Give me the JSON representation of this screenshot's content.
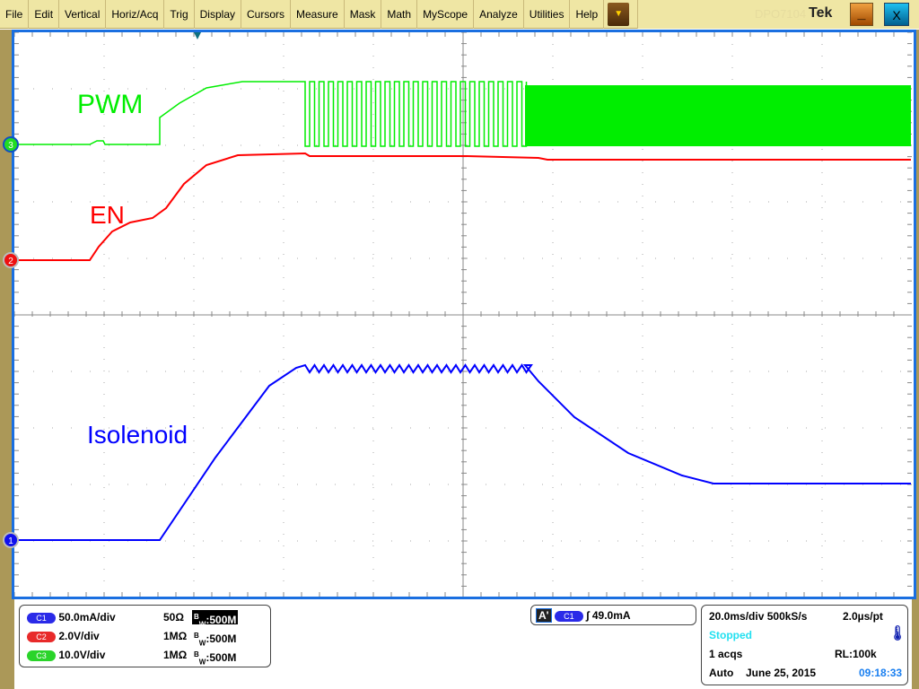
{
  "menu": {
    "items": [
      "File",
      "Edit",
      "Vertical",
      "Horiz/Acq",
      "Trig",
      "Display",
      "Cursors",
      "Measure",
      "Mask",
      "Math",
      "MyScope",
      "Analyze",
      "Utilities",
      "Help"
    ],
    "model": "DPO7104",
    "brand": "Tek",
    "minimize": "_",
    "close": "X"
  },
  "waveforms": {
    "labels": {
      "pwm": "PWM",
      "en": "EN",
      "isolenoid": "Isolenoid"
    },
    "markers": {
      "c1": "1",
      "c2": "2",
      "c3": "3"
    },
    "colors": {
      "c1": "#0000ff",
      "c2": "#ff0000",
      "c3": "#00ee00",
      "graticule_border": "#1a6fe0"
    }
  },
  "channels": [
    {
      "id": "C1",
      "scale": "50.0mA/div",
      "impedance": "50Ω",
      "bw": "500M",
      "color": "#2a2ae8"
    },
    {
      "id": "C2",
      "scale": "2.0V/div",
      "impedance": "1MΩ",
      "bw": "500M",
      "color": "#e82a2a"
    },
    {
      "id": "C3",
      "scale": "10.0V/div",
      "impedance": "1MΩ",
      "bw": "500M",
      "color": "#2ad42a"
    }
  ],
  "trigger": {
    "label": "A'",
    "source": "C1",
    "slope": "rising",
    "level": "49.0mA"
  },
  "acq": {
    "timebase": "20.0ms/div",
    "rate": "500kS/s",
    "resolution": "2.0µs/pt",
    "status": "Stopped",
    "acqs": "1 acqs",
    "record_length": "RL:100k",
    "mode": "Auto",
    "date": "June 25, 2015",
    "time": "09:18:33"
  }
}
